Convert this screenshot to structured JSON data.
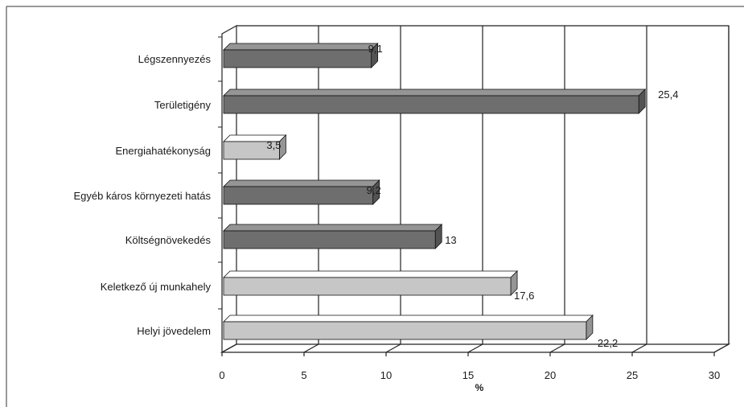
{
  "chart_data": {
    "type": "bar",
    "orientation": "horizontal",
    "style": "3d",
    "categories": [
      "Légszennyezés",
      "Területigény",
      "Energiahatékonyság",
      "Egyéb káros környezeti hatás",
      "Költségnövekedés",
      "Keletkező új munkahely",
      "Helyi jövedelem"
    ],
    "values": [
      9.1,
      25.4,
      3.5,
      9.2,
      13,
      17.6,
      22.2
    ],
    "value_labels": [
      "9,1",
      "25,4",
      "3,5",
      "9,2",
      "13",
      "17,6",
      "22,2"
    ],
    "bar_colors": [
      "#6e6e6e",
      "#6e6e6e",
      "#c6c6c6",
      "#6e6e6e",
      "#6e6e6e",
      "#c6c6c6",
      "#c6c6c6"
    ],
    "xlabel": "%",
    "ylabel": "",
    "xlim": [
      0,
      30
    ],
    "xticks": [
      "0",
      "5",
      "10",
      "15",
      "20",
      "25",
      "30"
    ],
    "grid": "vertical",
    "legend": "none"
  }
}
